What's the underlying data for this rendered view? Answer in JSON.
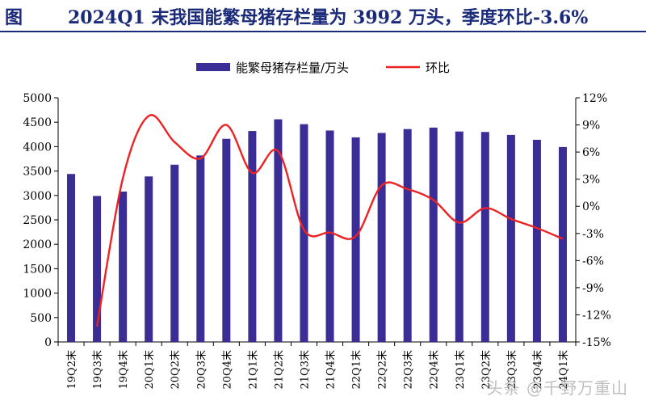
{
  "figure": {
    "label": "图",
    "title": "2024Q1 末我国能繁母猪存栏量为 3992 万头，季度环比-3.6%"
  },
  "watermark": "头条 @千野万重山",
  "colors": {
    "bar": "#3a2d96",
    "line": "#ee2222",
    "axis": "#000000",
    "title": "#1a2a7a"
  },
  "chart_data": {
    "type": "bar",
    "categories": [
      "19Q2末",
      "19Q3末",
      "19Q4末",
      "20Q1末",
      "20Q2末",
      "20Q3末",
      "20Q4末",
      "21Q1末",
      "21Q2末",
      "21Q3末",
      "21Q4末",
      "22Q1末",
      "22Q2末",
      "22Q3末",
      "22Q4末",
      "23Q1末",
      "23Q2末",
      "23Q3末",
      "23Q4末",
      "24Q1末"
    ],
    "series": [
      {
        "name": "能繁母猪存栏量/万头",
        "type": "bar",
        "axis": "left",
        "values": [
          3440,
          2990,
          3080,
          3390,
          3630,
          3820,
          4160,
          4320,
          4560,
          4460,
          4330,
          4190,
          4280,
          4360,
          4390,
          4310,
          4300,
          4240,
          4140,
          3992
        ]
      },
      {
        "name": "环比",
        "type": "line",
        "axis": "right",
        "values": [
          null,
          -13.3,
          3.1,
          10.0,
          7.1,
          5.3,
          9.0,
          3.7,
          6.1,
          -2.6,
          -2.9,
          -3.3,
          2.3,
          1.9,
          0.7,
          -1.8,
          -0.2,
          -1.4,
          -2.4,
          -3.6
        ]
      }
    ],
    "y_left": {
      "min": 0,
      "max": 5000,
      "ticks": [
        0,
        500,
        1000,
        1500,
        2000,
        2500,
        3000,
        3500,
        4000,
        4500,
        5000
      ]
    },
    "y_right": {
      "min": -15,
      "max": 12,
      "ticks": [
        "-15%",
        "-12%",
        "-9%",
        "-6%",
        "-3%",
        "0%",
        "3%",
        "6%",
        "9%",
        "12%"
      ]
    },
    "legend_position": "top",
    "grid": false
  }
}
